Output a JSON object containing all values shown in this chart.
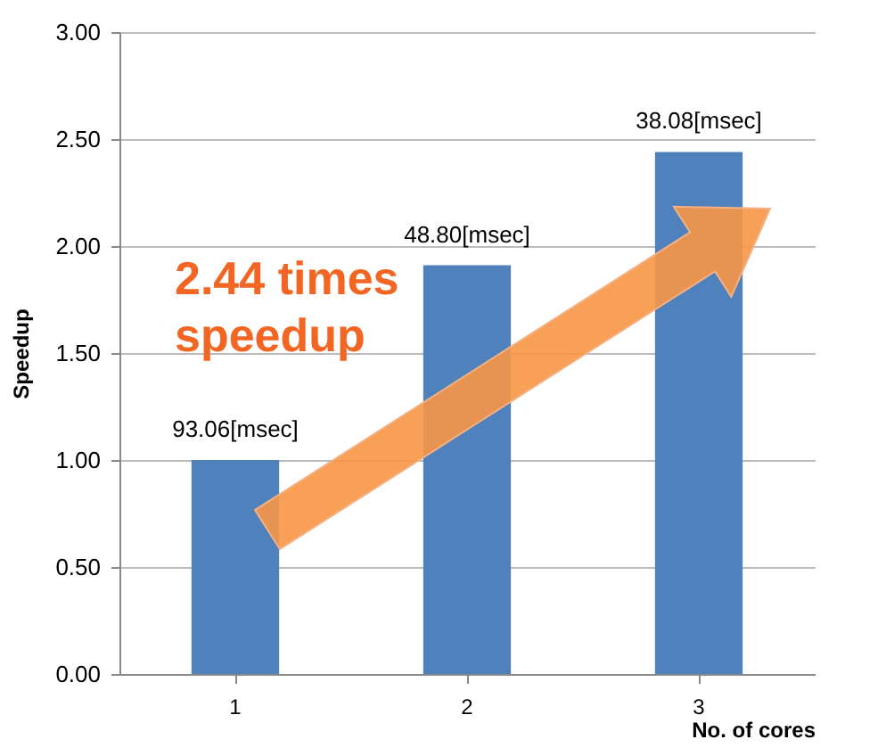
{
  "chart_data": {
    "type": "bar",
    "categories": [
      "1",
      "2",
      "3"
    ],
    "values": [
      1.0,
      1.91,
      2.44
    ],
    "color": "#4f81bd",
    "xlabel": "No. of cores",
    "ylabel": "Speedup",
    "ylim": [
      0,
      3
    ],
    "yticks": [
      {
        "value": 0,
        "label": "0.00"
      },
      {
        "value": 0.5,
        "label": "0.50"
      },
      {
        "value": 1,
        "label": "1.00"
      },
      {
        "value": 1.5,
        "label": "1.50"
      },
      {
        "value": 2,
        "label": "2.00"
      },
      {
        "value": 2.5,
        "label": "2.50"
      },
      {
        "value": 3,
        "label": "3.00"
      }
    ],
    "grid": "y",
    "annotations": [
      "2.44 times speedup",
      {
        "text": "93.06[msec]",
        "x": "1",
        "y": 1.0
      },
      {
        "text": "48.80[msec]",
        "x": "2",
        "y": 1.91
      },
      {
        "text": "38.08[msec]",
        "x": "3",
        "y": 2.44
      }
    ]
  }
}
